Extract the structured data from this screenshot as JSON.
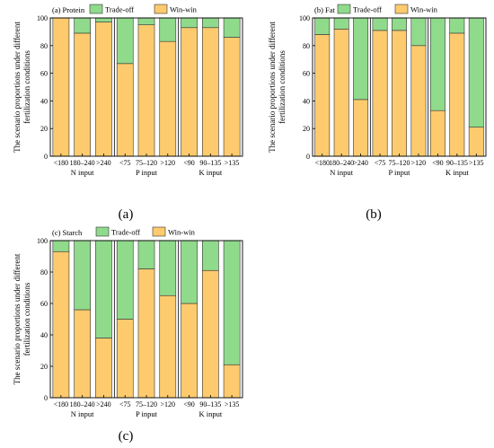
{
  "legend": {
    "tradeoff_label": "Trade-off",
    "winwin_label": "Win-win"
  },
  "colors": {
    "winwin": "#FDCB6E",
    "tradeoff": "#90DA8C",
    "outline": "#333333"
  },
  "ylabel_lines": [
    "The scenario proportions under different",
    "fertilization conditions"
  ],
  "chart_data": [
    {
      "type": "bar",
      "stacked": true,
      "title": "(a) Protein",
      "caption": "(a)",
      "categories": [
        "<180",
        "180–240",
        ">240",
        "<75",
        "75–120",
        ">120",
        "<90",
        "90–135",
        ">135"
      ],
      "groups": [
        {
          "label": "N input",
          "size": 3
        },
        {
          "label": "P input",
          "size": 3
        },
        {
          "label": "K input",
          "size": 3
        }
      ],
      "series": [
        {
          "name": "Win-win",
          "values": [
            100,
            89,
            97,
            67,
            95,
            83,
            93,
            93,
            86
          ]
        },
        {
          "name": "Trade-off",
          "values": [
            0,
            11,
            3,
            33,
            5,
            17,
            7,
            7,
            14
          ]
        }
      ],
      "yticks": [
        0,
        20,
        40,
        60,
        80,
        100
      ],
      "ylim": [
        0,
        100
      ],
      "legend_position": "top"
    },
    {
      "type": "bar",
      "stacked": true,
      "title": "(b) Fat",
      "caption": "(b)",
      "categories": [
        "<180",
        "180–240",
        ">240",
        "<75",
        "75–120",
        ">120",
        "<90",
        "90–135",
        ">135"
      ],
      "groups": [
        {
          "label": "N input",
          "size": 3
        },
        {
          "label": "P input",
          "size": 3
        },
        {
          "label": "K input",
          "size": 3
        }
      ],
      "series": [
        {
          "name": "Win-win",
          "values": [
            88,
            92,
            41,
            91,
            91,
            80,
            33,
            89,
            21
          ]
        },
        {
          "name": "Trade-off",
          "values": [
            12,
            8,
            59,
            9,
            9,
            20,
            67,
            11,
            79
          ]
        }
      ],
      "yticks": [
        0,
        20,
        40,
        60,
        80,
        100
      ],
      "ylim": [
        0,
        100
      ],
      "legend_position": "top"
    },
    {
      "type": "bar",
      "stacked": true,
      "title": "(c) Starch",
      "caption": "(c)",
      "categories": [
        "<180",
        "180–240",
        ">240",
        "<75",
        "75–120",
        ">120",
        "<90",
        "90–135",
        ">135"
      ],
      "groups": [
        {
          "label": "N input",
          "size": 3
        },
        {
          "label": "P input",
          "size": 3
        },
        {
          "label": "K input",
          "size": 3
        }
      ],
      "series": [
        {
          "name": "Win-win",
          "values": [
            93,
            56,
            38,
            50,
            82,
            65,
            60,
            81,
            21
          ]
        },
        {
          "name": "Trade-off",
          "values": [
            7,
            44,
            62,
            50,
            18,
            35,
            40,
            19,
            79
          ]
        }
      ],
      "yticks": [
        0,
        20,
        40,
        60,
        80,
        100
      ],
      "ylim": [
        0,
        100
      ],
      "legend_position": "top"
    }
  ]
}
